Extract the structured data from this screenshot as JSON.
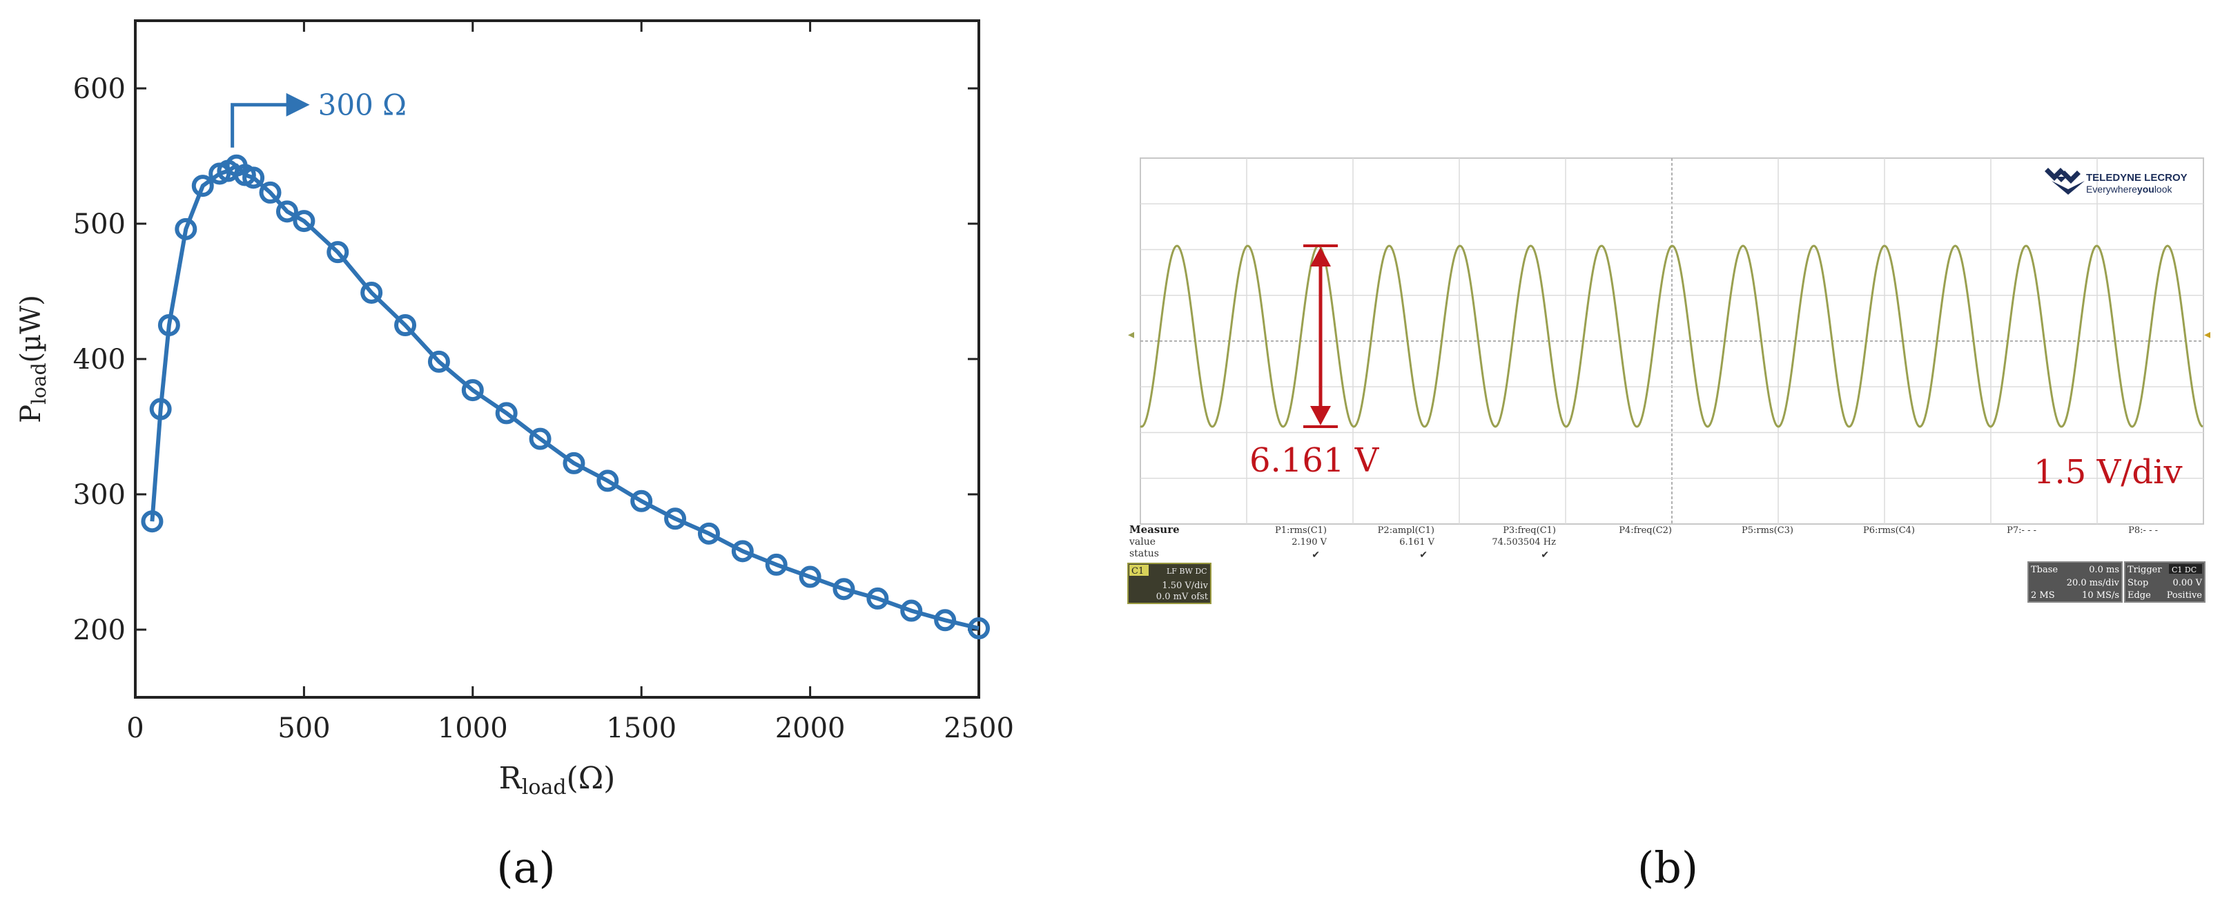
{
  "panel_a": {
    "label": "(a)",
    "title": "",
    "y_label_main": "P",
    "y_label_sub": "load",
    "y_label_unit": "(µW)",
    "x_label_main": "R",
    "x_label_sub": "load",
    "x_label_unit": "(Ω)",
    "annotation": "300 Ω",
    "accent_color": "#2f73b4"
  },
  "panel_b": {
    "label": "(b)",
    "brand_name": "TELEDYNE LECROY",
    "brand_tagline_pre": "Everywhere",
    "brand_tagline_bold": "you",
    "brand_tagline_post": "look",
    "amplitude_label": "6.161 V",
    "scale_label": "1.5 V/div",
    "wave_color": "#9aa050",
    "annotation_color": "#c0141b",
    "measure_title": "Measure",
    "measure_row_value": "value",
    "measure_row_status": "status",
    "params": [
      {
        "name": "P1:rms(C1)",
        "value": "2.190 V",
        "status": "✔"
      },
      {
        "name": "P2:ampl(C1)",
        "value": "6.161 V",
        "status": "✔"
      },
      {
        "name": "P3:freq(C1)",
        "value": "74.503504 Hz",
        "status": "✔"
      },
      {
        "name": "P4:freq(C2)",
        "value": "",
        "status": ""
      },
      {
        "name": "P5:rms(C3)",
        "value": "",
        "status": ""
      },
      {
        "name": "P6:rms(C4)",
        "value": "",
        "status": ""
      },
      {
        "name": "P7:- - -",
        "value": "",
        "status": ""
      },
      {
        "name": "P8:- - -",
        "value": "",
        "status": ""
      }
    ],
    "channel": {
      "name": "C1",
      "tags": "LF BW DC",
      "vdiv": "1.50 V/div",
      "offset": "0.0 mV ofst"
    },
    "timebase": {
      "title": "Tbase",
      "delay": "0.0 ms",
      "tdiv": "20.0 ms/div",
      "samples": "2 MS",
      "rate": "10 MS/s"
    },
    "trigger": {
      "title": "Trigger",
      "tags": "C1 DC",
      "mode": "Stop",
      "level": "0.00 V",
      "type": "Edge",
      "slope": "Positive"
    }
  },
  "chart_data": {
    "type": "line",
    "x": [
      50,
      75,
      100,
      150,
      200,
      250,
      275,
      300,
      325,
      350,
      400,
      450,
      500,
      600,
      700,
      800,
      900,
      1000,
      1100,
      1200,
      1300,
      1400,
      1500,
      1600,
      1700,
      1800,
      1900,
      2000,
      2100,
      2200,
      2300,
      2400,
      2500
    ],
    "series": [
      {
        "values": [
          280,
          363,
          425,
          496,
          528,
          537,
          539,
          543,
          536,
          534,
          523,
          509,
          502,
          479,
          449,
          425,
          398,
          377,
          360,
          341,
          323,
          310,
          295,
          282,
          271,
          258,
          248,
          239,
          230,
          223,
          214,
          207,
          201
        ]
      }
    ],
    "title": "",
    "xlabel": "Rload(Ω)",
    "ylabel": "Pload(µW)",
    "xlim": [
      0,
      2500
    ],
    "ylim": [
      150,
      650
    ],
    "xticks": [
      0,
      500,
      1000,
      1500,
      2000,
      2500
    ],
    "yticks": [
      200,
      300,
      400,
      500,
      600
    ],
    "grid": false,
    "marker": "open-circle",
    "annotation": {
      "text": "300 Ω",
      "x": 300,
      "y": 543
    }
  }
}
